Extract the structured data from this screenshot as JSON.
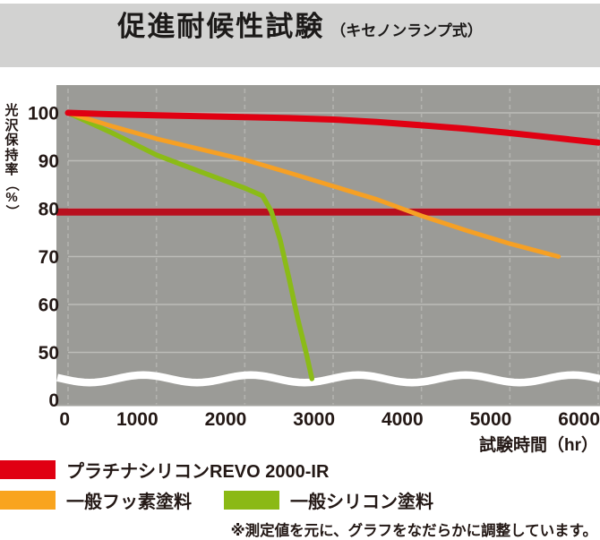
{
  "title": {
    "main": "促進耐候性試験",
    "sub": "（キセノンランプ式）"
  },
  "y_axis": {
    "label": "光沢保持率（%）",
    "label_chars": [
      "光",
      "沢",
      "保",
      "持",
      "率",
      "（",
      "%",
      "）"
    ],
    "ticks": [
      100,
      90,
      80,
      70,
      60,
      50
    ],
    "zero_label": "0"
  },
  "x_axis": {
    "label": "試験時間（hr）",
    "ticks": [
      0,
      1000,
      2000,
      3000,
      4000,
      5000,
      6000
    ]
  },
  "note": "※測定値を元に、グラフをなだらかに調整しています。",
  "legend": {
    "items": [
      {
        "label": "プラチナシリコンREVO 2000-IR",
        "color": "#e00012"
      },
      {
        "label": "一般フッ素塗料",
        "color": "#f9a41e"
      },
      {
        "label": "一般シリコン塗料",
        "color": "#8bb915"
      }
    ]
  },
  "colors": {
    "title_bar_bg": "#d2d2d1",
    "plot_bg": "#9b9b97",
    "gridline": "#bcbcb8",
    "dashed_gridline": "#b3b3af",
    "axis_line": "#a3a39f",
    "reference_line": "#b8101f",
    "axis_break_band": "#ffffff",
    "text": "#231815"
  },
  "chart_data": {
    "type": "line",
    "title": "促進耐候性試験（キセノンランプ式）",
    "xlabel": "試験時間(hr)",
    "ylabel": "光沢保持率(%)",
    "xlim": [
      0,
      6000
    ],
    "ylim_visible": [
      50,
      100
    ],
    "axis_break_between": [
      0,
      45
    ],
    "grid": "on",
    "legend_position": "below",
    "reference_line": {
      "value": 79.3,
      "color": "#b8101f",
      "label": ""
    },
    "series": [
      {
        "name": "プラチナシリコンREVO 2000-IR",
        "color": "#e00012",
        "stroke_width": 7,
        "points": [
          [
            0,
            100
          ],
          [
            500,
            99.7
          ],
          [
            1000,
            99.5
          ],
          [
            1500,
            99.3
          ],
          [
            2000,
            99.1
          ],
          [
            2500,
            98.9
          ],
          [
            3000,
            98.6
          ],
          [
            3500,
            98.1
          ],
          [
            4000,
            97.4
          ],
          [
            4500,
            96.7
          ],
          [
            5000,
            95.8
          ],
          [
            5500,
            94.8
          ],
          [
            6000,
            93.8
          ]
        ]
      },
      {
        "name": "一般フッ素塗料",
        "color": "#f6a024",
        "stroke_width": 5,
        "points": [
          [
            0,
            100
          ],
          [
            500,
            97.2
          ],
          [
            1000,
            94.6
          ],
          [
            1500,
            92.4
          ],
          [
            2000,
            90.2
          ],
          [
            2500,
            87.5
          ],
          [
            3000,
            84.7
          ],
          [
            3500,
            81.9
          ],
          [
            4000,
            78.5
          ],
          [
            4500,
            75.5
          ],
          [
            5000,
            72.7
          ],
          [
            5550,
            70.0
          ]
        ]
      },
      {
        "name": "一般シリコン塗料",
        "color": "#8bbb17",
        "stroke_width": 5.5,
        "points": [
          [
            0,
            100
          ],
          [
            500,
            95.8
          ],
          [
            1000,
            91.2
          ],
          [
            1500,
            87.7
          ],
          [
            2000,
            84.3
          ],
          [
            2200,
            82.7
          ],
          [
            2300,
            79.5
          ],
          [
            2400,
            73.5
          ],
          [
            2500,
            65.5
          ],
          [
            2600,
            57.0
          ],
          [
            2700,
            49.5
          ],
          [
            2760,
            44.5
          ]
        ]
      }
    ]
  }
}
